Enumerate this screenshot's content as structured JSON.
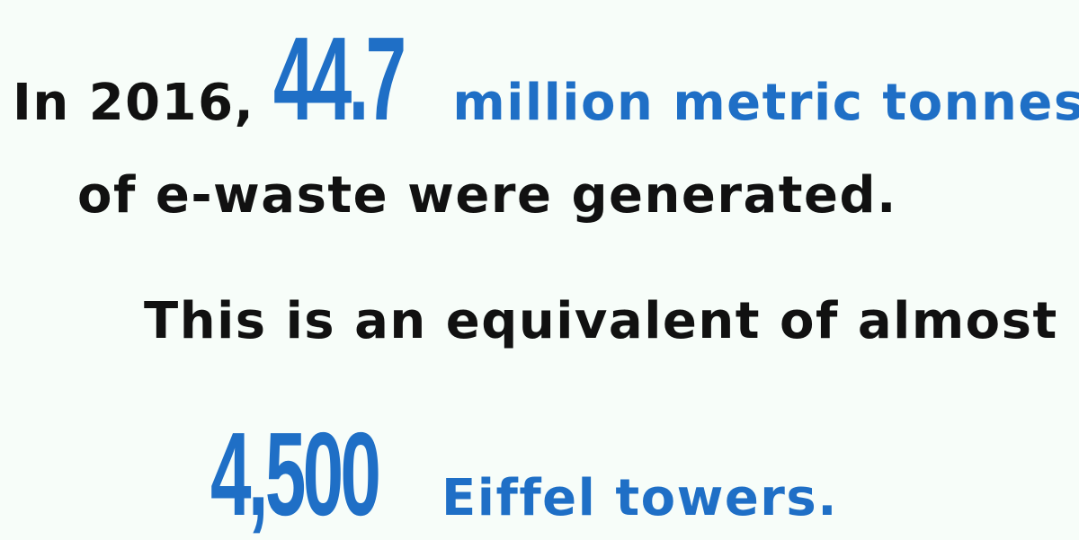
{
  "line1": {
    "prefix": "In 2016,",
    "number": "44.7",
    "suffix": "million metric tonnes"
  },
  "line2": {
    "text": "of e-waste were generated."
  },
  "line3": {
    "text": "This is an equivalent of almost"
  },
  "line4": {
    "number": "4,500",
    "suffix": "Eiffel towers."
  },
  "colors": {
    "dark_text": "#111111",
    "accent_blue": "#1f6fc6",
    "background": "#f7fdf9"
  }
}
